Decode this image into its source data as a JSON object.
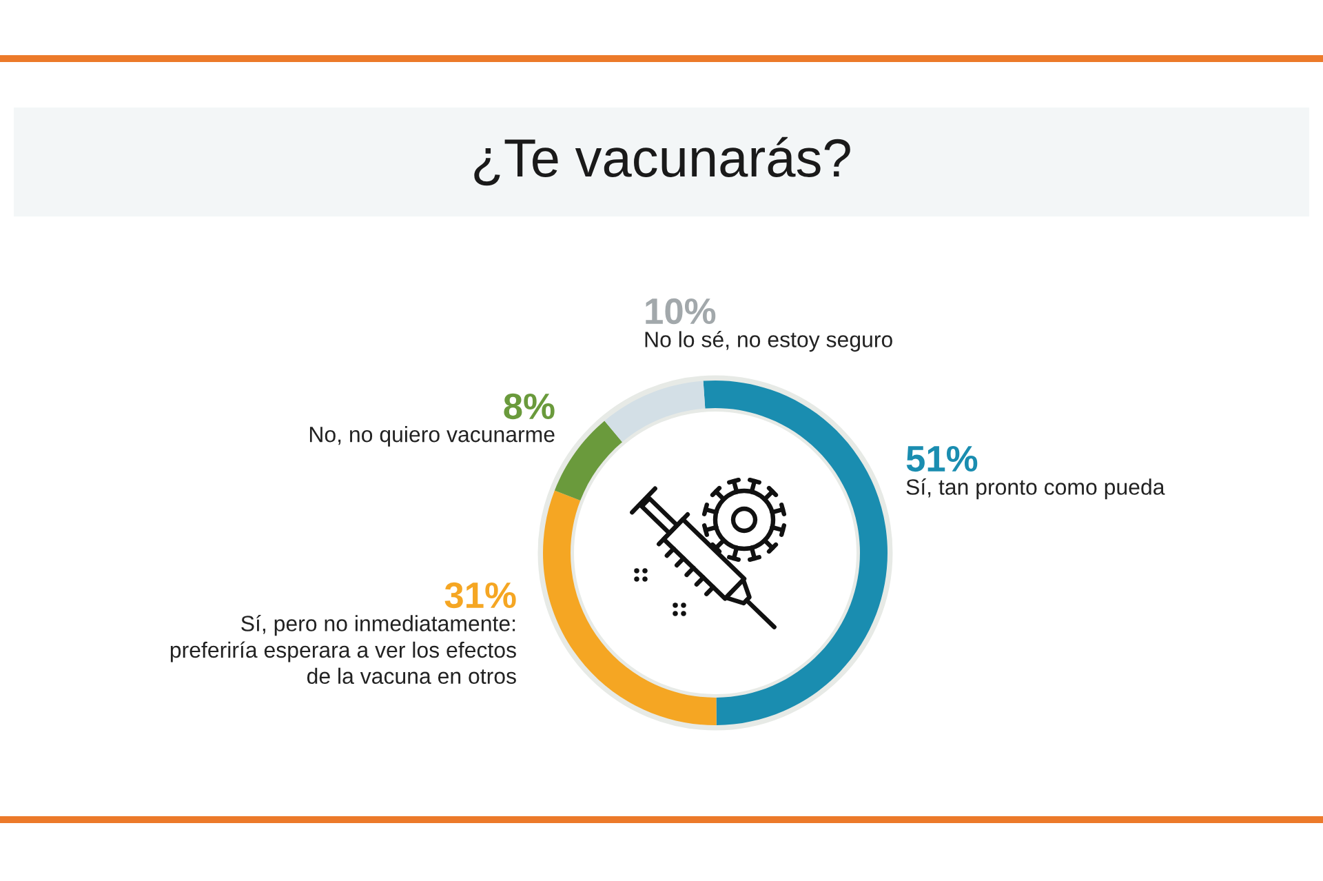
{
  "chart_data": {
    "type": "donut",
    "title": "¿Te vacunarás?",
    "categories": [
      "Sí, tan pronto como pueda",
      "Sí, pero no inmediatamente:\npreferiría esperara a ver los efectos\nde la vacuna en otros",
      "No, no quiero vacunarme",
      "No lo sé, no estoy seguro"
    ],
    "values": [
      51,
      31,
      8,
      10
    ],
    "colors": [
      "#1a8db0",
      "#f5a623",
      "#6a9a3c",
      "#d3dfe6"
    ],
    "value_labels": [
      "51%",
      "31%",
      "8%",
      "10%"
    ]
  }
}
